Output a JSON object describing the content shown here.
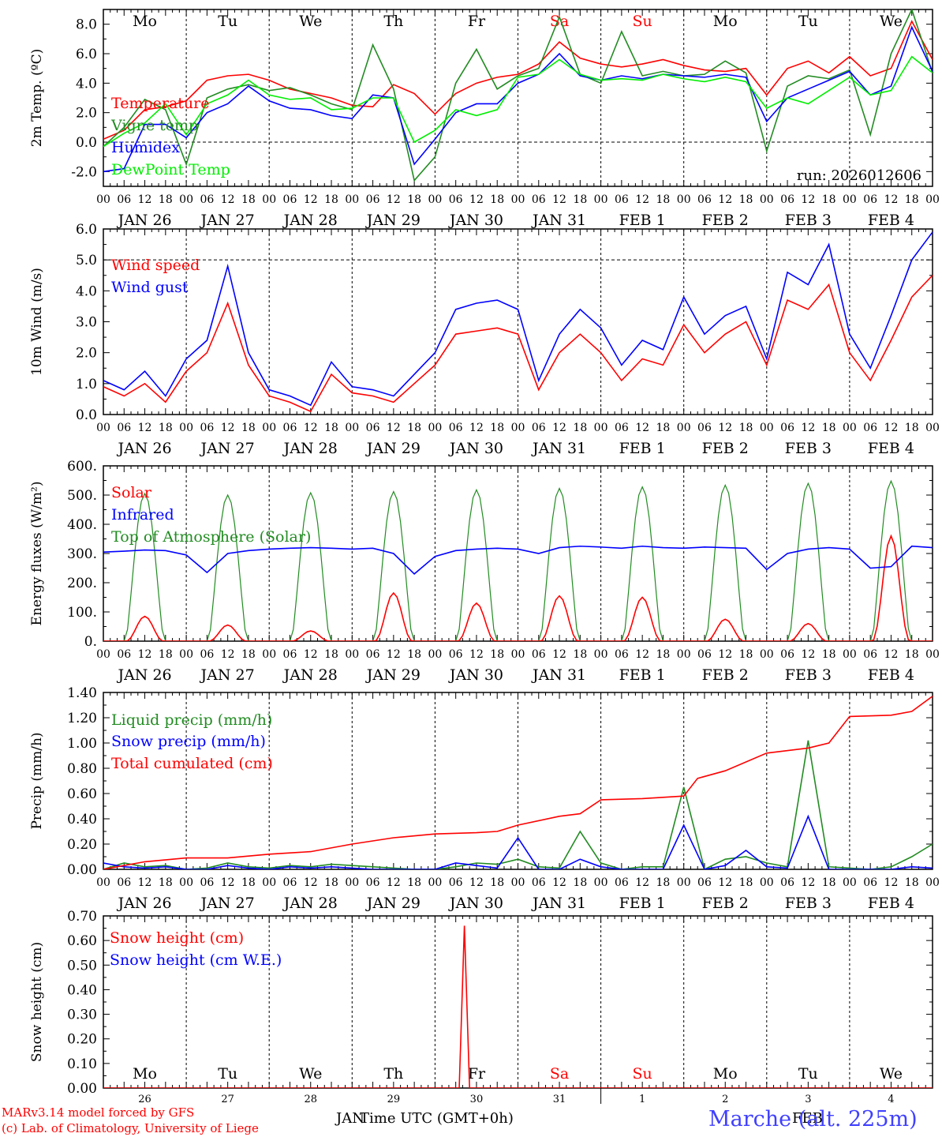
{
  "chart_data": [
    {
      "id": "temp",
      "type": "line",
      "ylabel": "2m Temp. (ºC)",
      "ylim": [
        -3,
        9
      ],
      "yticks": [
        -2,
        0,
        2,
        4,
        6,
        8
      ],
      "ytick_labels": [
        "-2.0",
        "0.0",
        "2.0",
        "4.0",
        "6.0",
        "8.0"
      ],
      "ref_lines": [
        0
      ],
      "run_label": "run: 2026012606",
      "series": [
        {
          "name": "Temperature",
          "color": "#ff0000",
          "x": [
            0,
            6,
            12,
            18,
            24,
            30,
            36,
            42,
            48,
            54,
            60,
            66,
            72,
            78,
            84,
            90,
            96,
            102,
            108,
            114,
            120,
            126,
            132,
            138,
            144,
            150,
            156,
            162,
            168,
            174,
            180,
            186,
            192,
            198,
            204,
            210,
            216,
            222,
            228,
            234,
            240
          ],
          "values": [
            0.2,
            0.8,
            2.2,
            2.4,
            2.8,
            4.2,
            4.5,
            4.6,
            4.2,
            3.6,
            3.3,
            3.0,
            2.5,
            2.4,
            3.9,
            3.3,
            1.9,
            3.3,
            4.0,
            4.4,
            4.6,
            5.3,
            6.8,
            5.7,
            5.3,
            5.1,
            5.3,
            5.6,
            5.2,
            4.9,
            4.8,
            5.0,
            3.2,
            5.0,
            5.5,
            4.7,
            5.8,
            4.5,
            5.0,
            8.2,
            5.6
          ]
        },
        {
          "name": "Vigne temp",
          "color": "#228b22",
          "x": [
            0,
            6,
            12,
            18,
            24,
            30,
            36,
            42,
            48,
            54,
            60,
            66,
            72,
            78,
            84,
            90,
            96,
            102,
            108,
            114,
            120,
            126,
            132,
            138,
            144,
            150,
            156,
            162,
            168,
            174,
            180,
            186,
            192,
            198,
            204,
            210,
            216,
            222,
            228,
            234,
            240
          ],
          "values": [
            -0.3,
            1.0,
            2.9,
            2.2,
            -1.5,
            3.0,
            3.6,
            3.9,
            3.5,
            3.7,
            3.2,
            2.6,
            2.2,
            6.6,
            3.6,
            -2.6,
            -1.0,
            4.0,
            6.3,
            3.6,
            4.5,
            5.0,
            8.5,
            4.6,
            4.0,
            7.5,
            4.5,
            4.8,
            4.5,
            4.6,
            5.5,
            4.7,
            -0.6,
            3.8,
            4.5,
            4.3,
            4.9,
            0.5,
            6.0,
            9.0,
            4.7
          ]
        },
        {
          "name": "Humidex",
          "color": "#0000ff",
          "x": [
            0,
            6,
            12,
            18,
            24,
            30,
            36,
            42,
            48,
            54,
            60,
            66,
            72,
            78,
            84,
            90,
            96,
            102,
            108,
            114,
            120,
            126,
            132,
            138,
            144,
            150,
            156,
            162,
            168,
            174,
            180,
            186,
            192,
            198,
            204,
            210,
            216,
            222,
            228,
            234,
            240
          ],
          "values": [
            -2.0,
            -1.8,
            1.2,
            1.2,
            0.3,
            2.0,
            2.6,
            3.8,
            2.8,
            2.3,
            2.2,
            1.8,
            1.6,
            3.2,
            3.0,
            -1.5,
            0.2,
            2.0,
            2.6,
            2.6,
            4.0,
            4.6,
            6.0,
            4.5,
            4.2,
            4.5,
            4.3,
            4.6,
            4.5,
            4.4,
            4.6,
            4.4,
            1.4,
            3.0,
            3.6,
            4.2,
            4.8,
            3.2,
            3.8,
            7.8,
            4.8
          ]
        },
        {
          "name": "DewPoint Temp",
          "color": "#00ee00",
          "x": [
            0,
            6,
            12,
            18,
            24,
            30,
            36,
            42,
            48,
            54,
            60,
            66,
            72,
            78,
            84,
            90,
            96,
            102,
            108,
            114,
            120,
            126,
            132,
            138,
            144,
            150,
            156,
            162,
            168,
            174,
            180,
            186,
            192,
            198,
            204,
            210,
            216,
            222,
            228,
            234,
            240
          ],
          "values": [
            -0.3,
            0.6,
            1.3,
            2.6,
            0.5,
            2.6,
            3.2,
            4.2,
            3.2,
            2.9,
            3.0,
            2.2,
            2.3,
            3.0,
            3.0,
            0.0,
            0.8,
            2.2,
            1.8,
            2.2,
            4.4,
            4.6,
            5.6,
            4.6,
            4.2,
            4.3,
            4.2,
            4.6,
            4.3,
            4.1,
            4.4,
            4.1,
            2.3,
            3.0,
            2.6,
            3.5,
            4.4,
            3.2,
            3.5,
            5.8,
            4.7
          ]
        }
      ]
    },
    {
      "id": "wind",
      "type": "line",
      "ylabel": "10m Wind (m/s)",
      "ylim": [
        0,
        6
      ],
      "yticks": [
        0,
        1,
        2,
        3,
        4,
        5,
        6
      ],
      "ytick_labels": [
        "0.0",
        "1.0",
        "2.0",
        "3.0",
        "4.0",
        "5.0",
        "6.0"
      ],
      "ref_lines": [
        5
      ],
      "series": [
        {
          "name": "Wind speed",
          "color": "#ff0000",
          "x": [
            0,
            6,
            12,
            18,
            24,
            30,
            36,
            42,
            48,
            54,
            60,
            66,
            72,
            78,
            84,
            90,
            96,
            102,
            108,
            114,
            120,
            126,
            132,
            138,
            144,
            150,
            156,
            162,
            168,
            174,
            180,
            186,
            192,
            198,
            204,
            210,
            216,
            222,
            228,
            234,
            240
          ],
          "values": [
            0.9,
            0.6,
            1.0,
            0.4,
            1.4,
            2.0,
            3.6,
            1.6,
            0.6,
            0.4,
            0.1,
            1.3,
            0.7,
            0.6,
            0.4,
            1.0,
            1.6,
            2.6,
            2.7,
            2.8,
            2.6,
            0.8,
            2.0,
            2.6,
            2.0,
            1.1,
            1.8,
            1.6,
            2.9,
            2.0,
            2.6,
            3.0,
            1.6,
            3.7,
            3.4,
            4.2,
            2.0,
            1.1,
            2.4,
            3.8,
            4.5
          ]
        },
        {
          "name": "Wind gust",
          "color": "#0000ff",
          "x": [
            0,
            6,
            12,
            18,
            24,
            30,
            36,
            42,
            48,
            54,
            60,
            66,
            72,
            78,
            84,
            90,
            96,
            102,
            108,
            114,
            120,
            126,
            132,
            138,
            144,
            150,
            156,
            162,
            168,
            174,
            180,
            186,
            192,
            198,
            204,
            210,
            216,
            222,
            228,
            234,
            240
          ],
          "values": [
            1.1,
            0.8,
            1.4,
            0.6,
            1.8,
            2.4,
            4.8,
            2.0,
            0.8,
            0.6,
            0.3,
            1.7,
            0.9,
            0.8,
            0.6,
            1.3,
            2.0,
            3.4,
            3.6,
            3.7,
            3.4,
            1.1,
            2.6,
            3.4,
            2.8,
            1.6,
            2.4,
            2.1,
            3.8,
            2.6,
            3.2,
            3.5,
            1.8,
            4.6,
            4.2,
            5.5,
            2.6,
            1.5,
            3.2,
            5.0,
            5.9
          ]
        }
      ]
    },
    {
      "id": "flux",
      "type": "line",
      "ylabel": "Energy fluxes (W/m²)",
      "ylim": [
        0,
        600
      ],
      "yticks": [
        0,
        100,
        200,
        300,
        400,
        500,
        600
      ],
      "ytick_labels": [
        "0.",
        "100.",
        "200.",
        "300.",
        "400.",
        "500.",
        "600."
      ],
      "ref_lines": [],
      "toa_peaks": [
        505,
        500,
        508,
        512,
        518,
        523,
        528,
        534,
        540,
        548
      ],
      "solar_peaks": [
        85,
        55,
        35,
        165,
        130,
        155,
        150,
        75,
        60,
        360
      ],
      "series": [
        {
          "name": "Solar",
          "color": "#ff0000"
        },
        {
          "name": "Infrared",
          "color": "#0000ff",
          "x": [
            0,
            6,
            12,
            18,
            24,
            30,
            36,
            42,
            48,
            54,
            60,
            66,
            72,
            78,
            84,
            90,
            96,
            102,
            108,
            114,
            120,
            126,
            132,
            138,
            144,
            150,
            156,
            162,
            168,
            174,
            180,
            186,
            192,
            198,
            204,
            210,
            216,
            222,
            228,
            234,
            240
          ],
          "values": [
            305,
            308,
            312,
            310,
            295,
            235,
            300,
            310,
            315,
            318,
            320,
            318,
            315,
            318,
            300,
            230,
            290,
            310,
            315,
            318,
            315,
            300,
            320,
            325,
            322,
            318,
            325,
            320,
            318,
            322,
            320,
            318,
            245,
            300,
            315,
            320,
            315,
            250,
            255,
            325,
            320
          ]
        },
        {
          "name": "Top of Atmosphere (Solar)",
          "color": "#228b22"
        }
      ]
    },
    {
      "id": "precip",
      "type": "line",
      "ylabel": "Precip (mm/h)",
      "ylim": [
        0,
        1.4
      ],
      "yticks": [
        0,
        0.2,
        0.4,
        0.6,
        0.8,
        1.0,
        1.2,
        1.4
      ],
      "ytick_labels": [
        "0.00",
        "0.20",
        "0.40",
        "0.60",
        "0.80",
        "1.00",
        "1.20",
        "1.40"
      ],
      "ref_lines": [],
      "series": [
        {
          "name": "Liquid precip (mm/h)",
          "color": "#228b22",
          "x": [
            0,
            6,
            12,
            18,
            24,
            30,
            36,
            42,
            48,
            54,
            60,
            66,
            72,
            78,
            84,
            90,
            96,
            102,
            108,
            114,
            120,
            126,
            132,
            138,
            144,
            150,
            156,
            162,
            168,
            174,
            180,
            186,
            192,
            198,
            204,
            210,
            216,
            222,
            228,
            234,
            240
          ],
          "values": [
            0.0,
            0.05,
            0.02,
            0.03,
            0.0,
            0.01,
            0.05,
            0.02,
            0.01,
            0.03,
            0.02,
            0.04,
            0.03,
            0.02,
            0.01,
            0.0,
            0.0,
            0.02,
            0.05,
            0.04,
            0.08,
            0.02,
            0.01,
            0.3,
            0.05,
            0.0,
            0.02,
            0.02,
            0.65,
            0.0,
            0.08,
            0.1,
            0.05,
            0.02,
            1.02,
            0.02,
            0.01,
            0.0,
            0.02,
            0.1,
            0.2
          ]
        },
        {
          "name": "Snow precip (mm/h)",
          "color": "#0000ff",
          "x": [
            0,
            6,
            12,
            18,
            24,
            30,
            36,
            42,
            48,
            54,
            60,
            66,
            72,
            78,
            84,
            90,
            96,
            102,
            108,
            114,
            120,
            126,
            132,
            138,
            144,
            150,
            156,
            162,
            168,
            174,
            180,
            186,
            192,
            198,
            204,
            210,
            216,
            222,
            228,
            234,
            240
          ],
          "values": [
            0.05,
            0.02,
            0.01,
            0.02,
            0.0,
            0.0,
            0.03,
            0.01,
            0.0,
            0.02,
            0.01,
            0.02,
            0.01,
            0.0,
            0.0,
            0.0,
            0.0,
            0.05,
            0.03,
            0.01,
            0.25,
            0.0,
            0.0,
            0.08,
            0.02,
            0.0,
            0.0,
            0.0,
            0.35,
            0.0,
            0.03,
            0.15,
            0.02,
            0.01,
            0.42,
            0.0,
            0.0,
            0.0,
            0.0,
            0.02,
            0.01
          ]
        },
        {
          "name": "Total cumulated (cm)",
          "color": "#ff0000",
          "x": [
            0,
            12,
            24,
            36,
            48,
            60,
            72,
            84,
            96,
            108,
            114,
            120,
            132,
            138,
            144,
            156,
            168,
            172,
            180,
            192,
            204,
            210,
            216,
            228,
            234,
            240
          ],
          "values": [
            0.0,
            0.06,
            0.09,
            0.09,
            0.12,
            0.14,
            0.2,
            0.25,
            0.28,
            0.29,
            0.3,
            0.35,
            0.42,
            0.44,
            0.55,
            0.56,
            0.58,
            0.72,
            0.78,
            0.92,
            0.96,
            1.0,
            1.21,
            1.22,
            1.25,
            1.37
          ]
        }
      ]
    },
    {
      "id": "snow",
      "type": "line",
      "ylabel": "Snow height (cm)",
      "ylim": [
        0,
        0.7
      ],
      "yticks": [
        0,
        0.1,
        0.2,
        0.3,
        0.4,
        0.5,
        0.6,
        0.7
      ],
      "ytick_labels": [
        "0.00",
        "0.10",
        "0.20",
        "0.30",
        "0.40",
        "0.50",
        "0.60",
        "0.70"
      ],
      "ref_lines": [],
      "series": [
        {
          "name": "Snow height (cm)",
          "color": "#ff0000",
          "x": [
            0,
            103,
            104.5,
            106,
            240
          ],
          "values": [
            0,
            0,
            0.66,
            0,
            0
          ]
        },
        {
          "name": "Snow height (cm W.E.)",
          "color": "#0000ff"
        }
      ]
    }
  ],
  "weekdays": [
    "Mo",
    "Tu",
    "We",
    "Th",
    "Fr",
    "Sa",
    "Su",
    "Mo",
    "Tu",
    "We"
  ],
  "weekday_colors": [
    "#000000",
    "#000000",
    "#000000",
    "#000000",
    "#000000",
    "#ff0000",
    "#ff0000",
    "#000000",
    "#000000",
    "#000000"
  ],
  "date_labels": [
    "JAN 26",
    "JAN 27",
    "JAN 28",
    "JAN 29",
    "JAN 30",
    "JAN 31",
    "FEB  1",
    "FEB  2",
    "FEB  3",
    "FEB  4"
  ],
  "day_numbers": [
    "26",
    "27",
    "28",
    "29",
    "30",
    "31",
    "1",
    "2",
    "3",
    "4"
  ],
  "hour_labels": [
    "00",
    "06",
    "12",
    "18"
  ],
  "final_hour_label": "00",
  "month_labels": [
    "JAN",
    "FEB"
  ],
  "xlabel": "Time UTC (GMT+0h)",
  "footer": {
    "model": "MARv3.14 model forced by GFS",
    "credit": "(c) Lab. of Climatology, University of Liege",
    "station": "Marche (alt. 225m)"
  },
  "colors": {
    "axis": "#000000",
    "grid": "#000000",
    "red": "#ff0000",
    "station": "#4040ff"
  }
}
